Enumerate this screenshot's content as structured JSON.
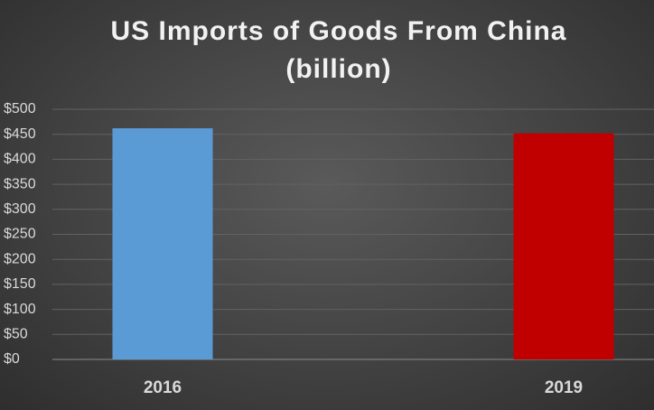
{
  "chart_data": {
    "type": "bar",
    "title": "US Imports of Goods From China (billion)",
    "categories": [
      "2016",
      "2019"
    ],
    "values": [
      462,
      452
    ],
    "colors": [
      "#5b9bd5",
      "#c00000"
    ],
    "ylim": [
      0,
      500
    ],
    "yticks": [
      {
        "value": 0,
        "label": "$0"
      },
      {
        "value": 50,
        "label": "$50"
      },
      {
        "value": 100,
        "label": "$100"
      },
      {
        "value": 150,
        "label": "$150"
      },
      {
        "value": 200,
        "label": "$200"
      },
      {
        "value": 250,
        "label": "$250"
      },
      {
        "value": 300,
        "label": "$300"
      },
      {
        "value": 350,
        "label": "$350"
      },
      {
        "value": 400,
        "label": "$400"
      },
      {
        "value": 450,
        "label": "$450"
      },
      {
        "value": 500,
        "label": "$500"
      }
    ],
    "grid": true
  }
}
